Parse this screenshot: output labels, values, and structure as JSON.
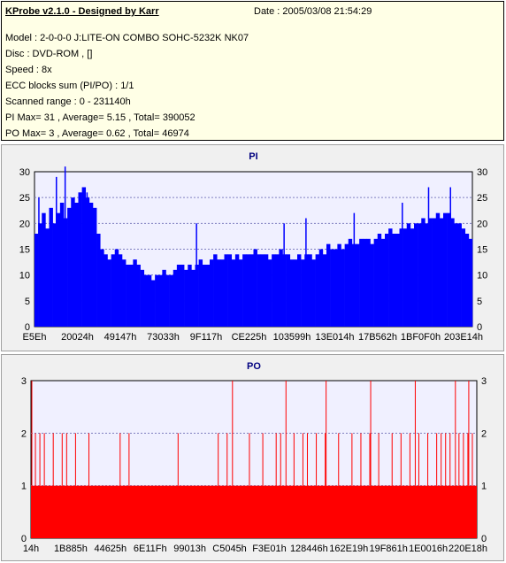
{
  "info": {
    "app_title": "KProbe v2.1.0 - Designed by Karr",
    "date": "Date : 2005/03/08 21:54:29",
    "lines": [
      "Model : 2-0-0-0 J:LITE-ON COMBO SOHC-5232K NK07",
      "Disc : DVD-ROM ,  []",
      "Speed : 8x",
      "ECC blocks sum (PI/PO) : 1/1",
      "Scanned range : 0 - 231140h",
      "PI Max= 31 , Average= 5.15 , Total= 390052",
      "PO Max= 3 , Average= 0.62 , Total= 46974"
    ]
  },
  "colors": {
    "pi_bar": "#0000ff",
    "po_bar": "#ff0000",
    "plot_bg": "#f0f0ff",
    "grid": "#8080c0"
  },
  "chart_data": [
    {
      "type": "bar",
      "title": "PI",
      "ylim": [
        0,
        30
      ],
      "yticks": [
        0,
        5,
        10,
        15,
        20,
        25,
        30
      ],
      "xtick_labels": [
        "E5Eh",
        "20024h",
        "49147h",
        "73033h",
        "9F117h",
        "CE225h",
        "103599h",
        "13E014h",
        "17B562h",
        "1BF0F0h",
        "203E14h"
      ],
      "series": [
        {
          "values": [
            18,
            20,
            22,
            19,
            23,
            20,
            22,
            24,
            21,
            23,
            25,
            24,
            26,
            27,
            25,
            24,
            23,
            18,
            15,
            14,
            13,
            14,
            15,
            14,
            13,
            12,
            12,
            13,
            12,
            11,
            10,
            10,
            9,
            10,
            10,
            11,
            10,
            10,
            11,
            12,
            12,
            11,
            12,
            11,
            12,
            13,
            12,
            12,
            13,
            14,
            13,
            13,
            14,
            14,
            13,
            14,
            13,
            14,
            14,
            14,
            15,
            14,
            14,
            14,
            13,
            14,
            14,
            15,
            14,
            14,
            13,
            13,
            14,
            13,
            14,
            14,
            13,
            14,
            15,
            14,
            16,
            15,
            15,
            16,
            15,
            16,
            17,
            16,
            16,
            17,
            17,
            17,
            16,
            17,
            18,
            17,
            18,
            19,
            18,
            18,
            19,
            19,
            20,
            19,
            20,
            20,
            21,
            20,
            21,
            21,
            22,
            21,
            22,
            22,
            21,
            20,
            20,
            19,
            18,
            17
          ],
          "spikes": [
            {
              "x": 0.07,
              "value": 31
            },
            {
              "x": 0.05,
              "value": 29
            },
            {
              "x": 0.01,
              "value": 25
            },
            {
              "x": 0.12,
              "value": 26
            },
            {
              "x": 0.37,
              "value": 20
            },
            {
              "x": 0.57,
              "value": 20
            },
            {
              "x": 0.62,
              "value": 21
            },
            {
              "x": 0.73,
              "value": 22
            },
            {
              "x": 0.84,
              "value": 24
            },
            {
              "x": 0.9,
              "value": 27
            },
            {
              "x": 0.95,
              "value": 27
            }
          ]
        }
      ]
    },
    {
      "type": "bar",
      "title": "PO",
      "ylim": [
        0,
        3
      ],
      "yticks": [
        0,
        1,
        2,
        3
      ],
      "xtick_labels": [
        "14h",
        "1B885h",
        "44625h",
        "6E11Fh",
        "99013h",
        "C5045h",
        "F3E01h",
        "128446h",
        "162E19h",
        "19F861h",
        "1E0016h",
        "220E18h"
      ],
      "series": [
        {
          "base_value": 1,
          "level2_positions": [
            0.01,
            0.02,
            0.03,
            0.05,
            0.07,
            0.08,
            0.1,
            0.13,
            0.2,
            0.22,
            0.33,
            0.42,
            0.44,
            0.49,
            0.52,
            0.55,
            0.56,
            0.59,
            0.61,
            0.62,
            0.64,
            0.66,
            0.69,
            0.72,
            0.74,
            0.76,
            0.78,
            0.81,
            0.83,
            0.85,
            0.87,
            0.89,
            0.91,
            0.92,
            0.93,
            0.94,
            0.96,
            0.97,
            0.98,
            0.99
          ],
          "level3_positions": [
            0.0,
            0.45,
            0.57,
            0.66,
            0.76,
            0.86,
            0.95,
            0.98
          ]
        }
      ]
    }
  ]
}
